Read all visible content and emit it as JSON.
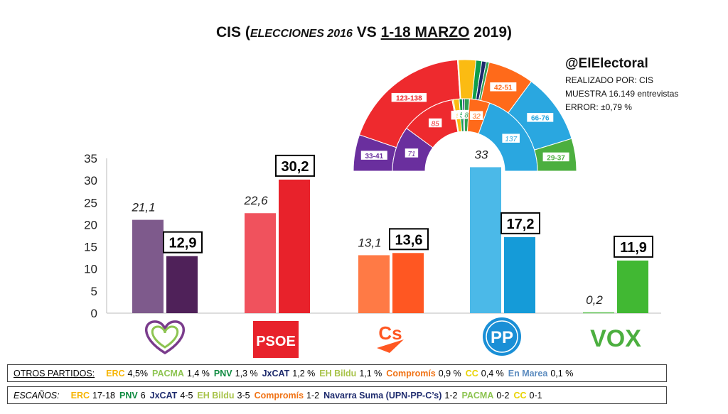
{
  "title": {
    "prefix": "CIS (",
    "italic": "ELECCIONES 2016",
    "vs": " VS ",
    "underlined": "1-18 MARZO",
    "suffix": " 2019)"
  },
  "meta": {
    "handle": "@ElElectoral",
    "lines": [
      "REALIZADO POR: CIS",
      "MUESTRA 16.149 entrevistas",
      "ERROR: ±0,79 %"
    ]
  },
  "chart_data": [
    {
      "type": "bar",
      "categories": [
        "Unidas Podemos",
        "PSOE",
        "Cs",
        "PP",
        "VOX"
      ],
      "logos": [
        "heart-logo",
        "PSOE",
        "Cs",
        "PP",
        "VOX"
      ],
      "series": [
        {
          "values": [
            21.1,
            22.6,
            13.1,
            33,
            0.2
          ],
          "labels": [
            "21,1",
            "22,6",
            "13,1",
            "33",
            "0,2"
          ],
          "colors": [
            "#7e5a8c",
            "#f0525d",
            "#ff7a45",
            "#4bb9e8",
            "#5ec353"
          ]
        },
        {
          "values": [
            12.9,
            30.2,
            13.6,
            17.2,
            11.9
          ],
          "labels": [
            "12,9",
            "30,2",
            "13,6",
            "17,2",
            "11,9"
          ],
          "colors": [
            "#4f2159",
            "#e8222b",
            "#ff5722",
            "#159bd8",
            "#41b833"
          ]
        }
      ],
      "ylim": [
        0,
        35
      ],
      "yticks": [
        0,
        5,
        10,
        15,
        20,
        25,
        30,
        35
      ]
    },
    {
      "type": "pie",
      "subtype": "parliament-hemicycle",
      "outer": [
        {
          "label": "33-41",
          "value": 37,
          "color": "#6a2f9e"
        },
        {
          "label": "123-138",
          "value": 130.5,
          "color": "#ee2a2e"
        },
        {
          "label": "",
          "value": 1,
          "color": "#e9d96e"
        },
        {
          "label": "",
          "value": 17.5,
          "color": "#fbbb12"
        },
        {
          "label": "",
          "value": 6,
          "color": "#0e9e4a"
        },
        {
          "label": "",
          "value": 4.5,
          "color": "#1e2b6e"
        },
        {
          "label": "",
          "value": 3,
          "color": "#2fa052"
        },
        {
          "label": "42-51",
          "value": 46.5,
          "color": "#ff6a1a"
        },
        {
          "label": "66-76",
          "value": 71,
          "color": "#2aa7e0"
        },
        {
          "label": "29-37",
          "value": 33,
          "color": "#4caf3f"
        }
      ],
      "inner": [
        {
          "label": "71",
          "value": 71,
          "color": "#6a2f9e"
        },
        {
          "label": "85",
          "value": 85,
          "color": "#ee2a2e"
        },
        {
          "label": "2",
          "value": 2,
          "color": "#e9d96e"
        },
        {
          "label": "9",
          "value": 9,
          "color": "#fbbb12"
        },
        {
          "label": "5",
          "value": 5,
          "color": "#0e9e4a"
        },
        {
          "label": "",
          "value": 3,
          "color": "#1e2b6e"
        },
        {
          "label": "8",
          "value": 8,
          "color": "#2fa052"
        },
        {
          "label": "32",
          "value": 32,
          "color": "#ff6a1a"
        },
        {
          "label": "137",
          "value": 137,
          "color": "#2aa7e0"
        }
      ]
    }
  ],
  "others": {
    "lead": "OTROS PARTIDOS:",
    "items": [
      {
        "name": "ERC",
        "value": "4,5%",
        "color": "#f6b400"
      },
      {
        "name": "PACMA",
        "value": "1,4 %",
        "color": "#8dc451"
      },
      {
        "name": "PNV",
        "value": "1,3 %",
        "color": "#0d8a3f"
      },
      {
        "name": "JxCAT",
        "value": "1,2 %",
        "color": "#1e2b6e"
      },
      {
        "name": "EH Bildu",
        "value": "1,1 %",
        "color": "#a8c34a"
      },
      {
        "name": "Compromís",
        "value": "0,9 %",
        "color": "#f07214"
      },
      {
        "name": "CC",
        "value": "0,4 %",
        "color": "#e8d200"
      },
      {
        "name": "En Marea",
        "value": "0,1 %",
        "color": "#5b8bbf"
      }
    ]
  },
  "seats": {
    "lead": "ESCAÑOS:",
    "items": [
      {
        "name": "ERC",
        "value": "17-18",
        "color": "#f6b400"
      },
      {
        "name": "PNV",
        "value": "6",
        "color": "#0d8a3f"
      },
      {
        "name": "JxCAT",
        "value": "4-5",
        "color": "#1e2b6e"
      },
      {
        "name": "EH Bildu",
        "value": "3-5",
        "color": "#a8c34a"
      },
      {
        "name": "Compromís",
        "value": "1-2",
        "color": "#f07214"
      },
      {
        "name": "Navarra Suma (UPN-PP-C’s)",
        "value": "1-2",
        "color": "#1e2b6e"
      },
      {
        "name": "PACMA",
        "value": "0-2",
        "color": "#8dc451"
      },
      {
        "name": "CC",
        "value": "0-1",
        "color": "#e8d200"
      }
    ]
  }
}
